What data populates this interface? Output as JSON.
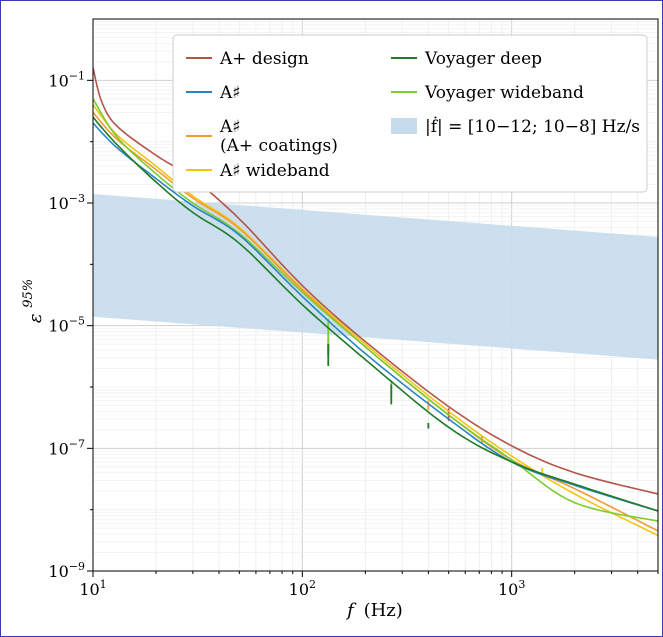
{
  "chart_data": {
    "type": "line",
    "xlabel_var": "f",
    "xlabel_unit": "(Hz)",
    "ylabel_base": "ε",
    "ylabel_sup": "95%",
    "xscale": "log",
    "yscale": "log",
    "xlim": [
      10,
      5000
    ],
    "ylim": [
      1e-09,
      1
    ],
    "grid": true,
    "legend_placement": "top-center",
    "x_ticks": [
      {
        "value": 10,
        "base": "10",
        "exp": "1"
      },
      {
        "value": 100,
        "base": "10",
        "exp": "2"
      },
      {
        "value": 1000,
        "base": "10",
        "exp": "3"
      }
    ],
    "y_ticks": [
      {
        "value": 1e-09,
        "base": "10",
        "exp": "−9"
      },
      {
        "value": 1e-07,
        "base": "10",
        "exp": "−7"
      },
      {
        "value": 1e-05,
        "base": "10",
        "exp": "−5"
      },
      {
        "value": 0.001,
        "base": "10",
        "exp": "−3"
      },
      {
        "value": 0.1,
        "base": "10",
        "exp": "−1"
      }
    ],
    "band": {
      "name": "|ḟ| = [10−12; 10−8] Hz/s",
      "color": "#c6dbec",
      "upper": [
        [
          10,
          0.0014
        ],
        [
          5000,
          0.00028
        ]
      ],
      "lower": [
        [
          10,
          1.4e-05
        ],
        [
          5000,
          2.8e-06
        ]
      ]
    },
    "series": [
      {
        "name": "A+ design",
        "color": "#b5554a",
        "points": [
          [
            10,
            0.16
          ],
          [
            11,
            0.045
          ],
          [
            13,
            0.018
          ],
          [
            20,
            0.006
          ],
          [
            30,
            0.0025
          ],
          [
            50,
            0.00055
          ],
          [
            100,
            4.5e-05
          ],
          [
            200,
            5.5e-06
          ],
          [
            500,
            4.8e-07
          ],
          [
            1000,
            1.1e-07
          ],
          [
            2000,
            4e-08
          ],
          [
            5000,
            1.8e-08
          ]
        ],
        "spikes": [
          [
            500,
            2.8e-07,
            4.5e-07
          ]
        ]
      },
      {
        "name": "A♯",
        "color": "#2a86c2",
        "points": [
          [
            10,
            0.02
          ],
          [
            13,
            0.008
          ],
          [
            20,
            0.0025
          ],
          [
            30,
            0.0009
          ],
          [
            50,
            0.0003
          ],
          [
            100,
            3e-05
          ],
          [
            200,
            3.5e-06
          ],
          [
            500,
            3e-07
          ],
          [
            1000,
            6e-08
          ],
          [
            2000,
            2.5e-08
          ],
          [
            5000,
            9.5e-09
          ]
        ],
        "spikes": [
          [
            133,
            3.2e-06,
            5e-06
          ]
        ]
      },
      {
        "name": "A♯\n(A+ coatings)",
        "color": "#f39a30",
        "points": [
          [
            10,
            0.03
          ],
          [
            13,
            0.011
          ],
          [
            20,
            0.0035
          ],
          [
            30,
            0.0012
          ],
          [
            50,
            0.00038
          ],
          [
            100,
            3.8e-05
          ],
          [
            200,
            4.5e-06
          ],
          [
            500,
            3.5e-07
          ],
          [
            1000,
            6.5e-08
          ],
          [
            2000,
            2.2e-08
          ],
          [
            5000,
            4.5e-09
          ]
        ],
        "spikes": [
          [
            133,
            4e-06,
            6e-06
          ],
          [
            400,
            4.2e-07,
            6e-07
          ],
          [
            720,
            1.2e-07,
            1.6e-07
          ]
        ]
      },
      {
        "name": "A♯ wideband",
        "color": "#f2c418",
        "points": [
          [
            10,
            0.04
          ],
          [
            13,
            0.013
          ],
          [
            20,
            0.004
          ],
          [
            30,
            0.0013
          ],
          [
            50,
            0.0004
          ],
          [
            100,
            4e-05
          ],
          [
            200,
            5e-06
          ],
          [
            500,
            4e-07
          ],
          [
            1000,
            7.5e-08
          ],
          [
            2000,
            1.8e-08
          ],
          [
            5000,
            3.8e-09
          ]
        ],
        "spikes": [
          [
            133,
            4.3e-06,
            6.5e-06
          ],
          [
            1400,
            3.5e-08,
            4.8e-08
          ]
        ]
      },
      {
        "name": "Voyager deep",
        "color": "#1f7a2a",
        "points": [
          [
            10,
            0.025
          ],
          [
            13,
            0.009
          ],
          [
            20,
            0.0022
          ],
          [
            30,
            0.0007
          ],
          [
            50,
            0.00022
          ],
          [
            100,
            2.2e-05
          ],
          [
            200,
            2.8e-06
          ],
          [
            500,
            2.2e-07
          ],
          [
            1000,
            6e-08
          ],
          [
            2000,
            2.6e-08
          ],
          [
            5000,
            9.5e-09
          ]
        ],
        "spikes": [
          [
            133,
            2.2e-06,
            5e-06
          ],
          [
            266,
            5.2e-07,
            1.1e-06
          ],
          [
            400,
            2.1e-07,
            2.6e-07
          ]
        ]
      },
      {
        "name": "Voyager wideband",
        "color": "#7ccc2e",
        "points": [
          [
            10,
            0.05
          ],
          [
            13,
            0.012
          ],
          [
            20,
            0.003
          ],
          [
            30,
            0.001
          ],
          [
            50,
            0.00032
          ],
          [
            100,
            3.5e-05
          ],
          [
            200,
            4.5e-06
          ],
          [
            500,
            3.5e-07
          ],
          [
            1000,
            6.5e-08
          ],
          [
            2000,
            1.3e-08
          ],
          [
            5000,
            6.5e-09
          ]
        ],
        "spikes": [
          [
            133,
            3.5e-06,
            1.3e-05
          ],
          [
            266,
            7e-07,
            1.3e-06
          ]
        ]
      }
    ]
  }
}
